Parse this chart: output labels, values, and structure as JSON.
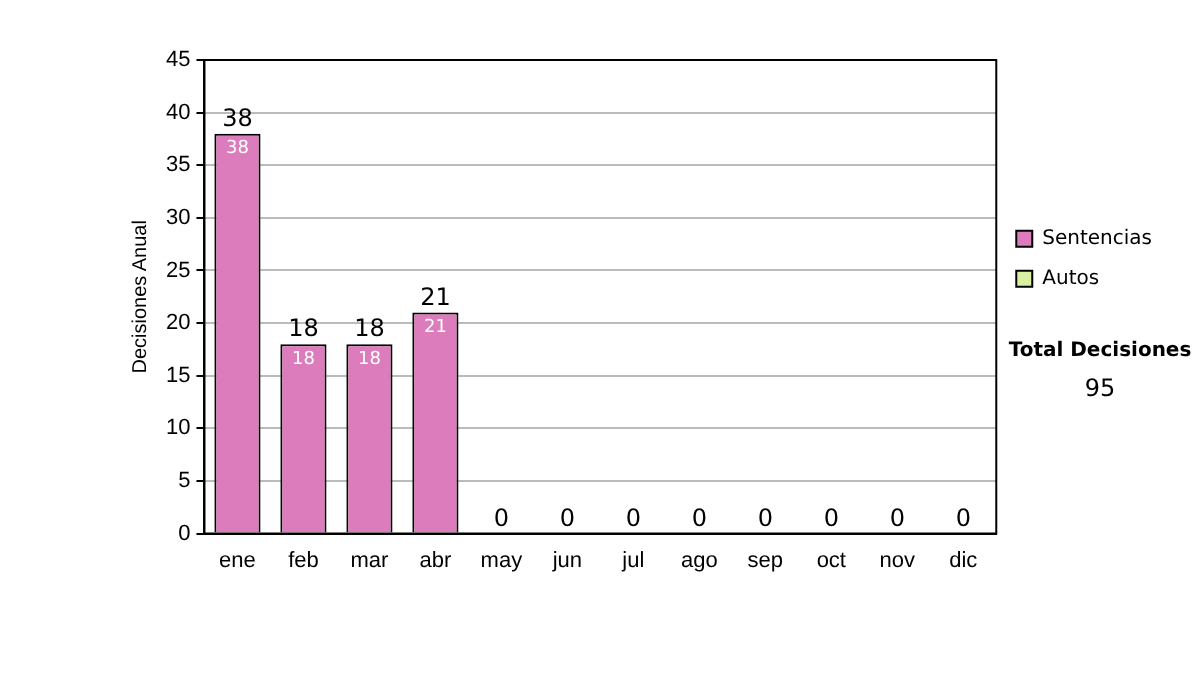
{
  "chart_data": {
    "type": "bar",
    "stacked": true,
    "ylabel": "Decisiones Anual",
    "categories": [
      "ene",
      "feb",
      "mar",
      "abr",
      "may",
      "jun",
      "jul",
      "ago",
      "sep",
      "oct",
      "nov",
      "dic"
    ],
    "series": [
      {
        "name": "Sentencias",
        "color": "#dd7cbd",
        "values": [
          38,
          18,
          18,
          21,
          0,
          0,
          0,
          0,
          0,
          0,
          0,
          0
        ],
        "value_labels": [
          "38",
          "18",
          "18",
          "21",
          null,
          null,
          null,
          null,
          null,
          null,
          null,
          null
        ]
      },
      {
        "name": "Autos",
        "color": "#d9f0a3",
        "values": [
          0,
          0,
          0,
          0,
          0,
          0,
          0,
          0,
          0,
          0,
          0,
          0
        ]
      }
    ],
    "totals": [
      "38",
      "18",
      "18",
      "21",
      "0",
      "0",
      "0",
      "0",
      "0",
      "0",
      "0",
      "0"
    ],
    "ylim": [
      0,
      45
    ],
    "yticks": [
      0,
      5,
      10,
      15,
      20,
      25,
      30,
      35,
      40,
      45
    ],
    "grid": "y",
    "legend": "right",
    "annotations": [
      "Total Decisiones",
      "95"
    ]
  }
}
